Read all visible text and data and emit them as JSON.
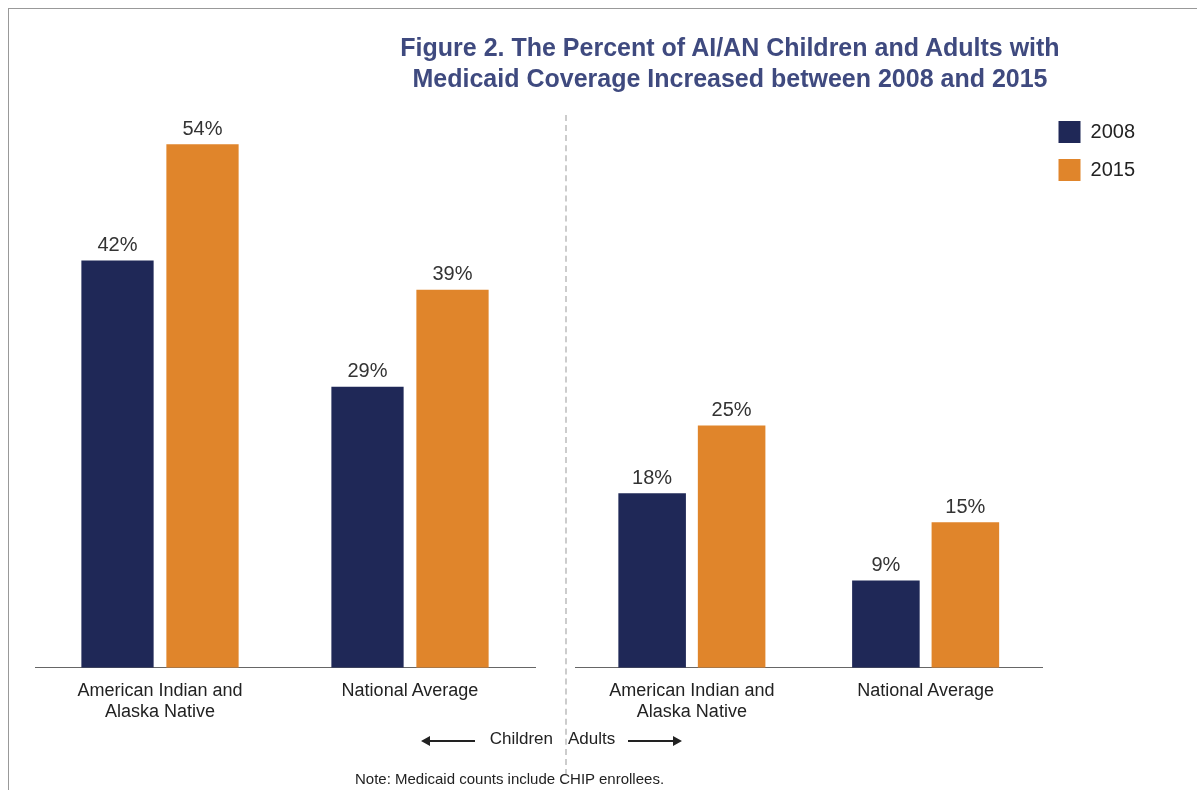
{
  "chart_data": [
    {
      "type": "bar",
      "title": "Figure 2. The Percent of AI/AN Children and Adults with Medicaid Coverage Increased between 2008 and 2015",
      "categories": [
        "American Indian and Alaska Native",
        "National Average"
      ],
      "series": [
        {
          "color": "#1f2857",
          "values": [
            42,
            29
          ],
          "value_labels": [
            "42%",
            "29%"
          ]
        },
        {
          "color": "#e0852b",
          "values": [
            54,
            39
          ],
          "value_labels": [
            "54%",
            "39%"
          ]
        }
      ],
      "grid": false,
      "legend": false,
      "tick_labels": "x",
      "annotations": [
        "Children",
        "Note: Medicaid counts include CHIP enrollees."
      ]
    },
    {
      "type": "bar",
      "categories": [
        "American Indian and Alaska Native",
        "National Average"
      ],
      "series": [
        {
          "name": "2008",
          "color": "#1f2857",
          "values": [
            18,
            9
          ],
          "value_labels": [
            "18%",
            "9%"
          ]
        },
        {
          "name": "2015",
          "color": "#e0852b",
          "values": [
            25,
            15
          ],
          "value_labels": [
            "25%",
            "15%"
          ]
        }
      ],
      "grid": false,
      "legend": "top right",
      "tick_labels": "x",
      "annotations": [
        "Adults"
      ]
    }
  ]
}
